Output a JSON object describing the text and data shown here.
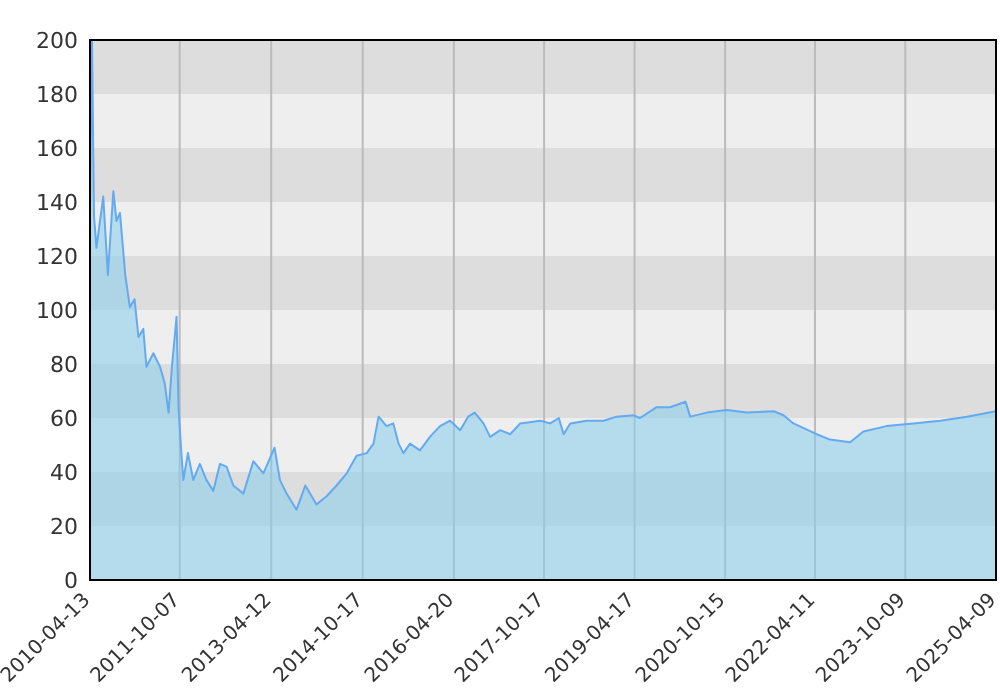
{
  "chart_data": {
    "type": "area",
    "x": [
      "2010-04-13",
      "2010-04-25",
      "2010-05-07",
      "2010-05-22",
      "2010-07-02",
      "2010-07-30",
      "2010-09-01",
      "2010-09-20",
      "2010-10-11",
      "2010-11-12",
      "2010-12-10",
      "2011-01-07",
      "2011-01-31",
      "2011-03-01",
      "2011-03-20",
      "2011-05-01",
      "2011-06-10",
      "2011-07-08",
      "2011-08-01",
      "2011-08-21",
      "2011-09-18",
      "2011-09-30",
      "2011-10-17",
      "2011-10-29",
      "2011-11-26",
      "2011-12-28",
      "2012-02-06",
      "2012-03-17",
      "2012-04-27",
      "2012-06-06",
      "2012-07-16",
      "2012-08-26",
      "2012-10-26",
      "2012-12-25",
      "2013-02-24",
      "2013-05-02",
      "2013-06-04",
      "2013-07-14",
      "2013-09-12",
      "2013-11-04",
      "2014-01-11",
      "2014-03-13",
      "2014-05-12",
      "2014-07-12",
      "2014-09-10",
      "2014-11-10",
      "2014-12-21",
      "2015-01-21",
      "2015-03-10",
      "2015-04-20",
      "2015-05-22",
      "2015-06-20",
      "2015-07-30",
      "2015-09-28",
      "2015-11-27",
      "2016-01-27",
      "2016-03-28",
      "2016-05-28",
      "2016-07-15",
      "2016-08-24",
      "2016-10-16",
      "2016-11-25",
      "2017-01-25",
      "2017-03-26",
      "2017-05-26",
      "2017-09-24",
      "2017-11-23",
      "2018-01-14",
      "2018-02-12",
      "2018-03-24",
      "2018-07-01",
      "2018-10-11",
      "2018-12-30",
      "2019-04-11",
      "2019-05-20",
      "2019-08-28",
      "2019-11-17",
      "2020-02-19",
      "2020-03-18",
      "2020-06-26",
      "2020-10-25",
      "2021-02-23",
      "2021-08-04",
      "2021-10-03",
      "2021-12-02",
      "2022-04-21",
      "2022-07-11",
      "2022-11-09",
      "2023-01-29",
      "2023-06-18",
      "2023-11-27",
      "2024-05-07",
      "2024-10-15",
      "2025-04-09"
    ],
    "series": [
      {
        "color": "#64aaf0",
        "values": [
          140,
          200,
          135,
          123,
          142,
          113,
          144,
          133,
          136,
          113,
          101,
          104,
          90,
          93,
          79,
          84,
          79,
          73,
          62,
          79,
          97.5,
          64,
          47,
          37,
          47,
          37,
          43,
          37,
          33,
          43,
          42,
          35,
          32,
          44,
          39.5,
          49,
          37,
          32,
          26,
          35,
          28,
          31,
          35,
          39.5,
          46,
          47,
          50.5,
          60.5,
          57,
          58,
          50.5,
          47,
          50.5,
          48,
          53,
          57,
          59,
          55.5,
          60.5,
          62,
          58,
          53,
          55.5,
          54,
          58,
          59,
          58,
          60,
          54,
          58,
          59,
          59,
          60.5,
          61,
          60,
          64,
          64,
          66,
          60.5,
          62,
          63,
          62,
          62.5,
          61,
          58,
          54,
          52,
          51,
          55,
          57,
          58,
          59,
          60.5,
          62.5
        ]
      }
    ],
    "xlim": [
      "2010-04-13",
      "2025-04-09"
    ],
    "xticks": [
      "2010-04-13",
      "2011-10-07",
      "2013-04-12",
      "2014-10-17",
      "2016-04-20",
      "2017-10-17",
      "2019-04-17",
      "2020-10-15",
      "2022-04-11",
      "2023-10-09",
      "2025-04-09"
    ],
    "ylim": [
      0,
      200
    ],
    "yticks": [
      0,
      20,
      40,
      60,
      80,
      100,
      120,
      140,
      160,
      180,
      200
    ],
    "grid": true
  }
}
